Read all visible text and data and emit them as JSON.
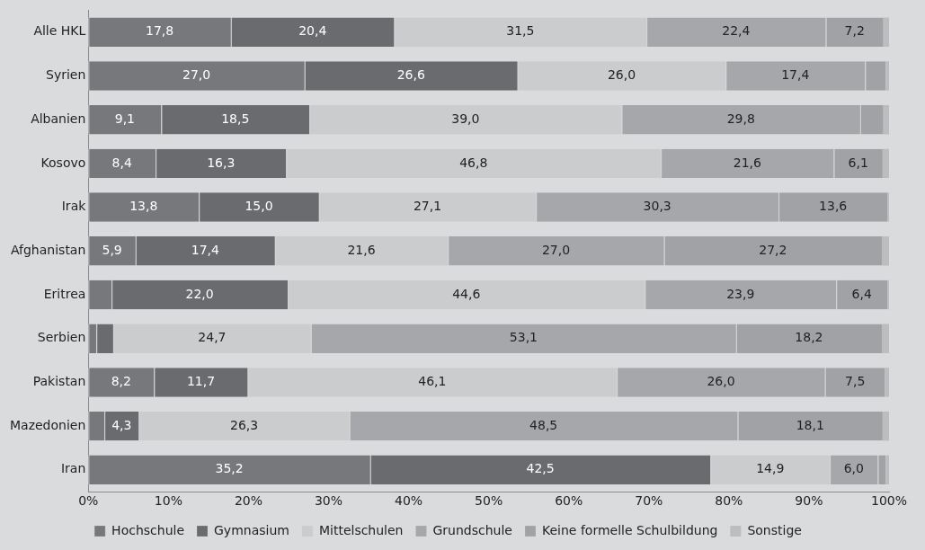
{
  "chart_data": {
    "type": "bar",
    "orientation": "horizontal",
    "stacked": true,
    "categories": [
      "Alle HKL",
      "Syrien",
      "Albanien",
      "Kosovo",
      "Irak",
      "Afghanistan",
      "Eritrea",
      "Serbien",
      "Pakistan",
      "Mazedonien",
      "Iran"
    ],
    "series": [
      {
        "name": "Hochschule",
        "color": "#77787b",
        "values": [
          17.8,
          27.0,
          9.1,
          8.4,
          13.8,
          5.9,
          2.9,
          1.0,
          8.2,
          2.0,
          35.2
        ],
        "value_labels": [
          "17,8",
          "27,0",
          "9,1",
          "8,4",
          "13,8",
          "5,9",
          null,
          null,
          "8,2",
          null,
          "35,2"
        ]
      },
      {
        "name": "Gymnasium",
        "color": "#6a6b6e",
        "values": [
          20.4,
          26.6,
          18.5,
          16.3,
          15.0,
          17.4,
          22.0,
          2.1,
          11.7,
          4.3,
          42.5
        ],
        "value_labels": [
          "20,4",
          "26,6",
          "18,5",
          "16,3",
          "15,0",
          "17,4",
          "22,0",
          null,
          "11,7",
          "4,3",
          "42,5"
        ]
      },
      {
        "name": "Mittelschulen",
        "color": "#cbcccd",
        "values": [
          31.5,
          26.0,
          39.0,
          46.8,
          27.1,
          21.6,
          44.6,
          24.7,
          46.1,
          26.3,
          14.9
        ],
        "value_labels": [
          "31,5",
          "26,0",
          "39,0",
          "46,8",
          "27,1",
          "21,6",
          "44,6",
          "24,7",
          "46,1",
          "26,3",
          "14,9"
        ]
      },
      {
        "name": "Grundschule",
        "color": "#a6a7aa",
        "values": [
          22.4,
          17.4,
          29.8,
          21.6,
          30.3,
          27.0,
          23.9,
          53.1,
          26.0,
          48.5,
          6.0
        ],
        "value_labels": [
          "22,4",
          "17,4",
          "29,8",
          "21,6",
          "30,3",
          "27,0",
          "23,9",
          "53,1",
          "26,0",
          "48,5",
          "6,0"
        ]
      },
      {
        "name": "Keine formelle Schulbildung",
        "color": "#a1a2a5",
        "values": [
          7.2,
          2.6,
          2.9,
          6.1,
          13.6,
          27.2,
          6.4,
          18.2,
          7.5,
          18.1,
          1.0
        ],
        "value_labels": [
          "7,2",
          null,
          null,
          "6,1",
          "13,6",
          "27,2",
          "6,4",
          "18,2",
          "7,5",
          "18,1",
          null
        ]
      },
      {
        "name": "Sonstige",
        "color": "#bcbdbf",
        "values": [
          0.7,
          0.4,
          0.7,
          0.8,
          0.2,
          0.9,
          0.2,
          0.9,
          0.5,
          0.8,
          0.4
        ],
        "value_labels": [
          null,
          null,
          null,
          null,
          null,
          null,
          null,
          null,
          null,
          null,
          null
        ]
      }
    ],
    "xlim": [
      0,
      100
    ],
    "xticks": [
      {
        "value": 0,
        "label": "0%"
      },
      {
        "value": 10,
        "label": "10%"
      },
      {
        "value": 20,
        "label": "20%"
      },
      {
        "value": 30,
        "label": "30%"
      },
      {
        "value": 40,
        "label": "40%"
      },
      {
        "value": 50,
        "label": "50%"
      },
      {
        "value": 60,
        "label": "60%"
      },
      {
        "value": 70,
        "label": "70%"
      },
      {
        "value": 80,
        "label": "80%"
      },
      {
        "value": 90,
        "label": "90%"
      },
      {
        "value": 100,
        "label": "100%"
      }
    ],
    "legend": "bottom"
  }
}
